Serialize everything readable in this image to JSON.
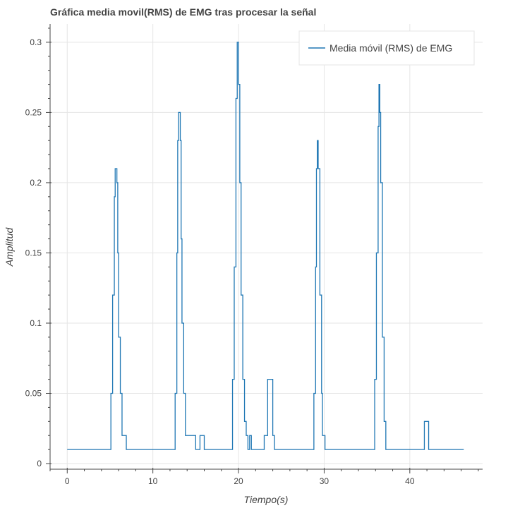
{
  "chart_data": {
    "type": "line",
    "title": "Gráfica media movil(RMS) de EMG tras procesar la señal",
    "xlabel": "Tiempo(s)",
    "ylabel": "Amplitud",
    "xlim": [
      -2,
      48.5
    ],
    "ylim": [
      -0.004,
      0.313
    ],
    "xticks": [
      0,
      10,
      20,
      30,
      40
    ],
    "xtick_labels": [
      "0",
      "10",
      "20",
      "30",
      "40"
    ],
    "yticks": [
      0,
      0.05,
      0.1,
      0.15,
      0.2,
      0.25,
      0.3
    ],
    "ytick_labels": [
      "0",
      "0.05",
      "0.1",
      "0.15",
      "0.2",
      "0.25",
      "0.3"
    ],
    "grid": true,
    "legend_position": "top-right",
    "colors": {
      "line": "#1f77b4",
      "grid": "#e5e5e5",
      "axis": "#444444",
      "legend_border": "#e5e5e5"
    },
    "series": [
      {
        "name": "Media móvil (RMS) de EMG",
        "x": [
          0,
          4.9,
          5.1,
          5.3,
          5.5,
          5.6,
          5.7,
          5.8,
          5.9,
          6.0,
          6.2,
          6.4,
          6.5,
          6.9,
          7.0,
          12.4,
          12.6,
          12.8,
          12.9,
          13.0,
          13.1,
          13.2,
          13.3,
          13.4,
          13.6,
          13.8,
          14.0,
          15.0,
          15.5,
          15.6,
          16.0,
          16.1,
          19.1,
          19.3,
          19.5,
          19.7,
          19.85,
          20.0,
          20.15,
          20.3,
          20.5,
          20.7,
          20.9,
          21.1,
          21.3,
          21.5,
          21.7,
          22.0,
          23.0,
          23.4,
          23.5,
          24.0,
          24.2,
          24.5,
          28.6,
          28.8,
          29.0,
          29.1,
          29.2,
          29.3,
          29.5,
          29.7,
          29.8,
          30.1,
          30.3,
          35.7,
          35.9,
          36.1,
          36.3,
          36.4,
          36.5,
          36.6,
          36.8,
          37.0,
          37.2,
          37.4,
          41.7,
          42.2,
          46.3
        ],
        "y": [
          0.01,
          0.01,
          0.05,
          0.12,
          0.19,
          0.21,
          0.21,
          0.2,
          0.15,
          0.09,
          0.05,
          0.02,
          0.02,
          0.01,
          0.01,
          0.01,
          0.05,
          0.15,
          0.23,
          0.25,
          0.25,
          0.23,
          0.16,
          0.1,
          0.05,
          0.02,
          0.02,
          0.01,
          0.02,
          0.02,
          0.01,
          0.01,
          0.01,
          0.06,
          0.14,
          0.26,
          0.3,
          0.27,
          0.2,
          0.12,
          0.06,
          0.03,
          0.02,
          0.01,
          0.02,
          0.01,
          0.01,
          0.01,
          0.02,
          0.06,
          0.06,
          0.02,
          0.01,
          0.01,
          0.01,
          0.05,
          0.14,
          0.21,
          0.23,
          0.21,
          0.12,
          0.05,
          0.02,
          0.01,
          0.01,
          0.01,
          0.06,
          0.15,
          0.24,
          0.27,
          0.25,
          0.2,
          0.09,
          0.03,
          0.01,
          0.01,
          0.03,
          0.01,
          0.01
        ]
      }
    ]
  }
}
